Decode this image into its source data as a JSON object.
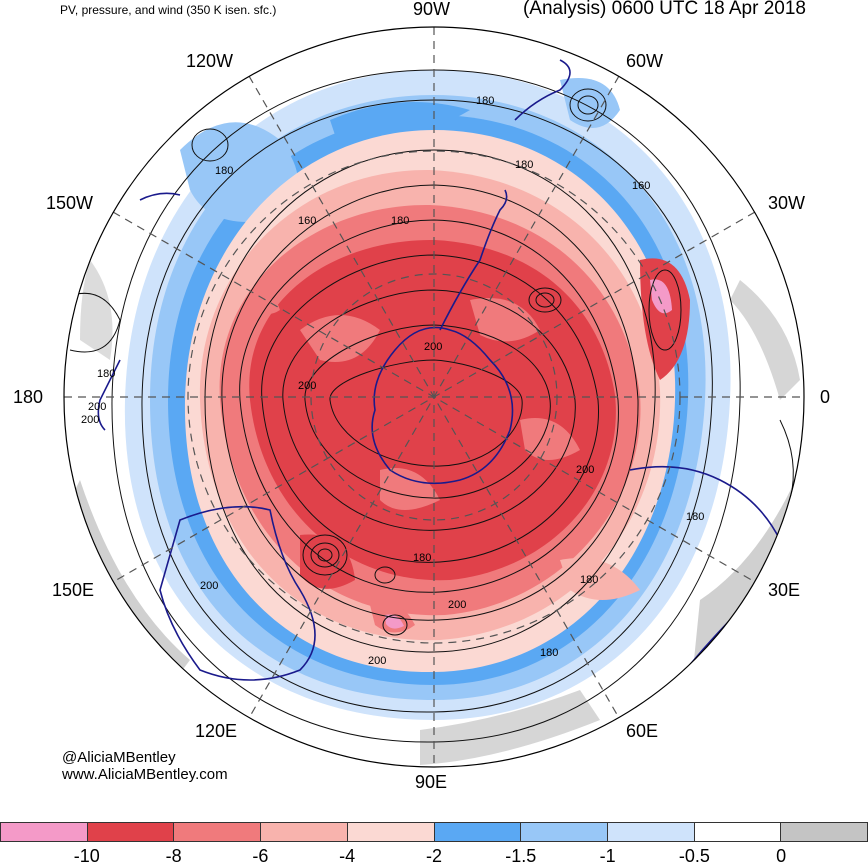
{
  "header": {
    "left_title": "PV, pressure, and wind (350 K isen. sfc.)",
    "right_title": "(Analysis) 0600 UTC 18 Apr 2018"
  },
  "longitude_labels": {
    "w90": "90W",
    "w60": "60W",
    "w120": "120W",
    "w30": "30W",
    "w150": "150W",
    "zero": "0",
    "d180": "180",
    "e150": "150E",
    "e30": "30E",
    "e120": "120E",
    "e60": "60E",
    "e90": "90E"
  },
  "contour_labels": [
    "180",
    "180",
    "160",
    "180",
    "160",
    "180",
    "200",
    "200",
    "200",
    "180",
    "200",
    "180",
    "200",
    "180",
    "200",
    "200",
    "180",
    "200",
    "180"
  ],
  "credit": {
    "handle": "@AliciaMBentley",
    "site": "www.AliciaMBentley.com"
  },
  "colorbar": {
    "colors": [
      "#f49ac8",
      "#e0414a",
      "#f07a7c",
      "#f8b3ad",
      "#fbd9d3",
      "#5aa8f3",
      "#98c7f7",
      "#cfe3fb",
      "#ffffff",
      "#c4c4c4"
    ],
    "ticks": [
      "-10",
      "-8",
      "-6",
      "-4",
      "-2",
      "-1.5",
      "-1",
      "-0.5",
      "0"
    ]
  },
  "styles": {
    "coast_color": "#1a1a8c",
    "contour_color": "#111111",
    "grid_color": "#555555"
  }
}
